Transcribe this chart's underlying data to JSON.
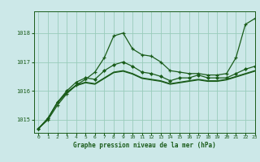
{
  "title": "Graphe pression niveau de la mer (hPa)",
  "bg_color": "#cce8e8",
  "grid_color": "#99ccbb",
  "line_color": "#1a5c1a",
  "xlim": [
    -0.5,
    23
  ],
  "ylim": [
    1014.55,
    1018.75
  ],
  "yticks": [
    1015,
    1016,
    1017,
    1018
  ],
  "xticks": [
    0,
    1,
    2,
    3,
    4,
    5,
    6,
    7,
    8,
    9,
    10,
    11,
    12,
    13,
    14,
    15,
    16,
    17,
    18,
    19,
    20,
    21,
    22,
    23
  ],
  "series0": [
    1014.7,
    1015.0,
    1015.5,
    1015.9,
    1016.2,
    1016.4,
    1016.65,
    1017.15,
    1017.9,
    1018.0,
    1017.45,
    1017.25,
    1017.2,
    1017.0,
    1016.7,
    1016.65,
    1016.6,
    1016.6,
    1016.55,
    1016.55,
    1016.6,
    1017.15,
    1018.3,
    1018.5
  ],
  "series1": [
    1014.7,
    1015.05,
    1015.6,
    1016.0,
    1016.3,
    1016.45,
    1016.4,
    1016.7,
    1016.9,
    1017.0,
    1016.85,
    1016.65,
    1016.6,
    1016.5,
    1016.35,
    1016.45,
    1016.45,
    1016.55,
    1016.45,
    1016.45,
    1016.45,
    1016.6,
    1016.75,
    1016.85
  ],
  "series2": [
    1014.7,
    1015.05,
    1015.6,
    1015.95,
    1016.2,
    1016.3,
    1016.25,
    1016.45,
    1016.65,
    1016.7,
    1016.6,
    1016.45,
    1016.4,
    1016.35,
    1016.25,
    1016.3,
    1016.35,
    1016.4,
    1016.35,
    1016.35,
    1016.4,
    1016.5,
    1016.6,
    1016.7
  ],
  "series3": [
    1014.7,
    1015.05,
    1015.58,
    1015.93,
    1016.18,
    1016.28,
    1016.23,
    1016.43,
    1016.63,
    1016.68,
    1016.58,
    1016.43,
    1016.38,
    1016.33,
    1016.23,
    1016.28,
    1016.33,
    1016.38,
    1016.33,
    1016.33,
    1016.38,
    1016.48,
    1016.58,
    1016.68
  ]
}
